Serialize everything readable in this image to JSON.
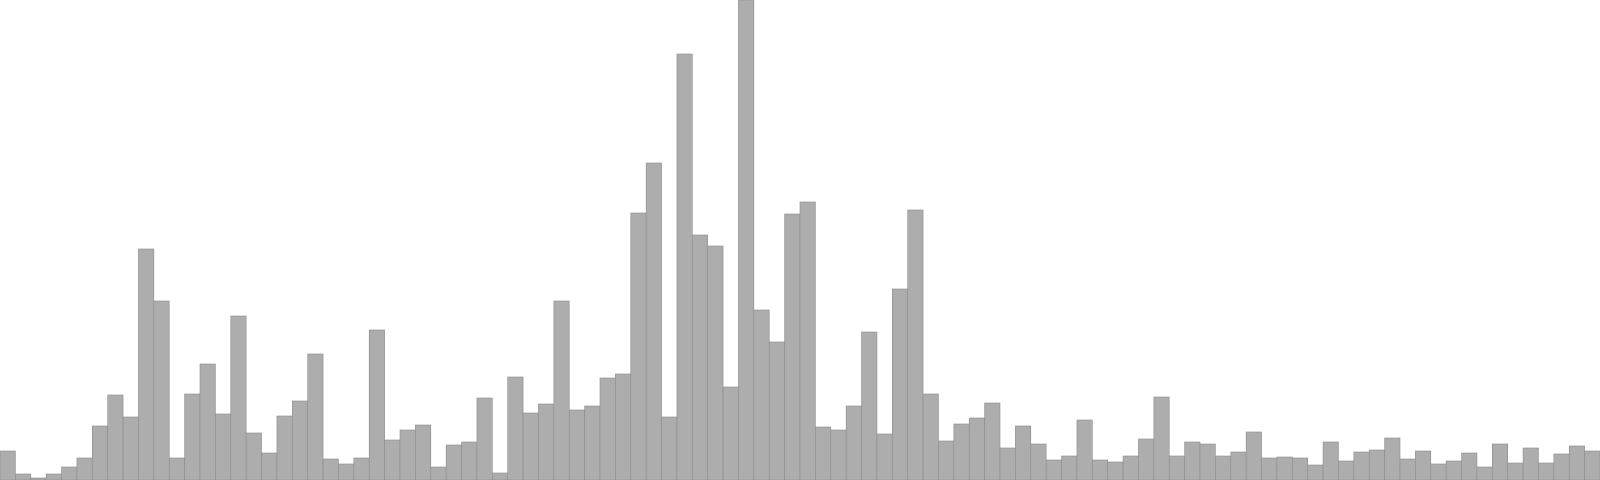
{
  "chart_data": {
    "type": "bar",
    "title": "",
    "xlabel": "",
    "ylabel": "",
    "ylim": [
      0,
      480
    ],
    "grid": false,
    "legend": "none",
    "bar_color": "#adadad",
    "bar_edge_color": "#8c8c8c",
    "values": [
      29,
      6,
      2,
      6,
      13,
      22,
      54,
      85,
      63,
      231,
      179,
      22,
      86,
      116,
      66,
      164,
      47,
      27,
      64,
      79,
      126,
      21,
      16,
      22,
      150,
      40,
      50,
      55,
      13,
      35,
      38,
      82,
      7,
      103,
      67,
      76,
      179,
      70,
      74,
      102,
      106,
      267,
      317,
      63,
      426,
      245,
      234,
      93,
      480,
      170,
      138,
      266,
      278,
      53,
      50,
      74,
      148,
      46,
      191,
      270,
      86,
      39,
      56,
      62,
      77,
      32,
      54,
      36,
      20,
      24,
      60,
      20,
      18,
      24,
      41,
      83,
      24,
      38,
      36,
      24,
      28,
      48,
      22,
      23,
      22,
      15,
      38,
      19,
      28,
      30,
      42,
      21,
      29,
      16,
      19,
      27,
      13,
      36,
      17,
      32,
      17,
      26,
      34,
      29
    ]
  }
}
